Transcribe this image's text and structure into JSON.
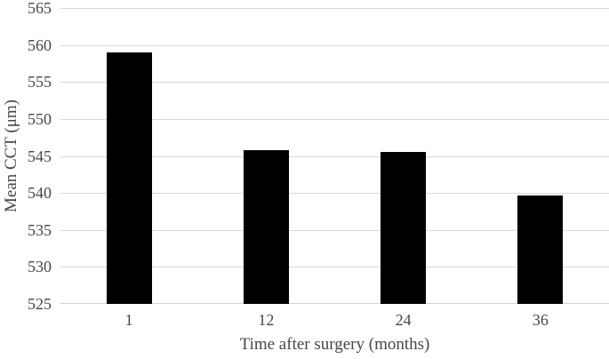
{
  "chart_data": {
    "type": "bar",
    "title": "",
    "categories": [
      "1",
      "12",
      "24",
      "36"
    ],
    "values": [
      559,
      545.8,
      545.5,
      539.6
    ],
    "xlabel": "Time after surgery (months)",
    "ylabel": "Mean CCT (μm)",
    "ylim": [
      525,
      565
    ],
    "ytick_step": 5,
    "yticks": [
      525,
      530,
      535,
      540,
      545,
      550,
      555,
      560,
      565
    ],
    "grid": true,
    "legend": false,
    "gridlines_full_width": true,
    "bar_color": "#000000",
    "gridline_color": "#d9d9d9",
    "axis_line_color": "#d2d2d2",
    "text_color": "#474747",
    "background_color": "#ffffff"
  }
}
